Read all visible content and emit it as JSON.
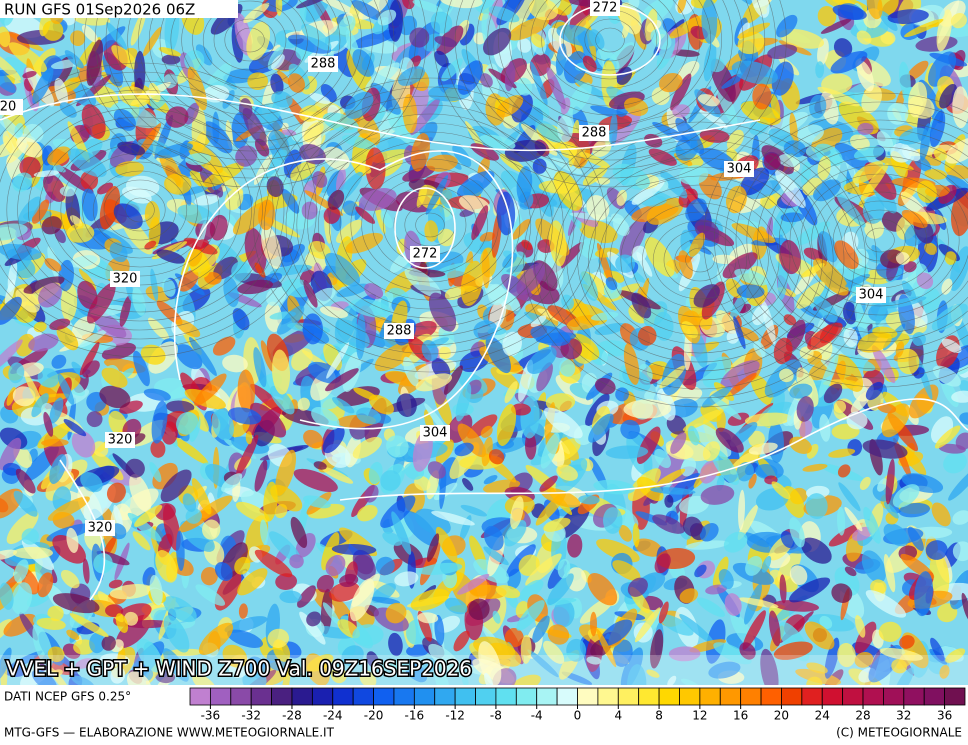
{
  "run_label": "RUN GFS 01Sep2026 06Z",
  "contour_labels": [
    "272",
    "288",
    "20",
    "320",
    "272",
    "288",
    "304",
    "304",
    "288",
    "304",
    "320",
    "320"
  ],
  "map_title": "VVEL + GPT + WIND Z700 Val. 09Z16SEP2026",
  "source": "DATI NCEP GFS 0.25°",
  "colorbar": {
    "range": [
      -38,
      38
    ],
    "ticks": [
      -36,
      -32,
      -28,
      -24,
      -20,
      -16,
      -12,
      -8,
      -4,
      0,
      4,
      8,
      12,
      16,
      20,
      24,
      28,
      32,
      36
    ],
    "colors": [
      "#c080d0",
      "#a060c0",
      "#8a4aa8",
      "#6a3090",
      "#4a2080",
      "#2a1a90",
      "#1a20b0",
      "#1030d0",
      "#1048e0",
      "#1060f0",
      "#1878f0",
      "#2090f0",
      "#30a8f0",
      "#40c0f0",
      "#50d0f0",
      "#60e0f0",
      "#80ecf0",
      "#a8f4f4",
      "#d8fcfc",
      "#fffcc0",
      "#fff890",
      "#fff060",
      "#ffe830",
      "#ffd800",
      "#ffc800",
      "#ffb000",
      "#ff9800",
      "#ff8000",
      "#ff6000",
      "#f04000",
      "#e02020",
      "#d01030",
      "#c01040",
      "#b01050",
      "#a01058",
      "#901060",
      "#801060",
      "#701050"
    ]
  },
  "credits_left": "MTG-GFS — ELABORAZIONE WWW.METEOGIORNALE.IT",
  "credits_right": "(C) METEOGIORNALE"
}
